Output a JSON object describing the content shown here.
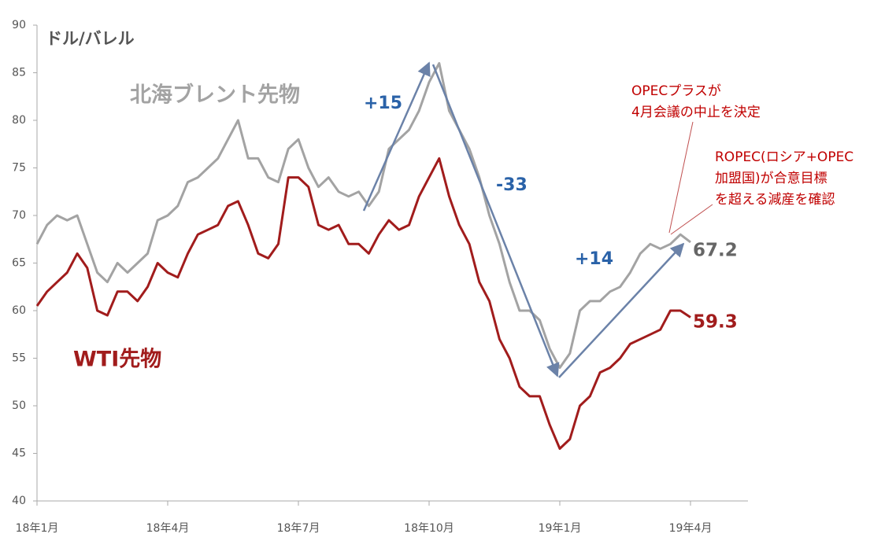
{
  "chart_data": {
    "type": "line",
    "y_label": "ドル/バレル",
    "categories": [
      "18年1月",
      null,
      null,
      null,
      null,
      null,
      null,
      null,
      null,
      null,
      null,
      null,
      null,
      "18年4月",
      null,
      null,
      null,
      null,
      null,
      null,
      null,
      null,
      null,
      null,
      null,
      null,
      "18年7月",
      null,
      null,
      null,
      null,
      null,
      null,
      null,
      null,
      null,
      null,
      null,
      null,
      "18年10月",
      null,
      null,
      null,
      null,
      null,
      null,
      null,
      null,
      null,
      null,
      null,
      null,
      "19年1月",
      null,
      null,
      null,
      null,
      null,
      null,
      null,
      null,
      null,
      null,
      null,
      null,
      "19年4月"
    ],
    "series": [
      {
        "name": "北海ブレント先物",
        "color": "#a3a3a3",
        "values": [
          67,
          69,
          70,
          69.5,
          70,
          67,
          64,
          63,
          65,
          64,
          65,
          66,
          69.5,
          70,
          71,
          73.5,
          74,
          75,
          76,
          78,
          80,
          76,
          76,
          74,
          73.5,
          77,
          78,
          75,
          73,
          74,
          72.5,
          72,
          72.5,
          71,
          72.5,
          77,
          78,
          79,
          81,
          84,
          86,
          81,
          79,
          77,
          74,
          70,
          67,
          63,
          60,
          60,
          59,
          56,
          54,
          55.5,
          60,
          61,
          61,
          62,
          62.5,
          64,
          66,
          67,
          66.5,
          67,
          68,
          67.2
        ]
      },
      {
        "name": "WTI先物",
        "color": "#a11c1c",
        "values": [
          60.5,
          62,
          63,
          64,
          66,
          64.5,
          60,
          59.5,
          62,
          62,
          61,
          62.5,
          65,
          64,
          63.5,
          66,
          68,
          68.5,
          69,
          71,
          71.5,
          69,
          66,
          65.5,
          67,
          74,
          74,
          73,
          69,
          68.5,
          69,
          67,
          67,
          66,
          68,
          69.5,
          68.5,
          69,
          72,
          74,
          76,
          72,
          69,
          67,
          63,
          61,
          57,
          55,
          52,
          51,
          51,
          48,
          45.5,
          46.5,
          50,
          51,
          53.5,
          54,
          55,
          56.5,
          57,
          57.5,
          58,
          60,
          60,
          59.3
        ]
      }
    ],
    "ylim": [
      40,
      90
    ],
    "yticks": [
      40,
      45,
      50,
      55,
      60,
      65,
      70,
      75,
      80,
      85,
      90
    ],
    "grid": false,
    "annotations": [
      {
        "text": [
          "+15"
        ]
      },
      {
        "text": [
          "-33"
        ]
      },
      {
        "text": [
          "+14"
        ]
      },
      {
        "text": [
          "OPECプラスが",
          "4月会議の中止を決定"
        ]
      },
      {
        "text": [
          "ROPEC(ロシア+OPEC",
          "加盟国)が合意目標",
          "を超える減産を確認"
        ]
      },
      {
        "text": [
          "67.2"
        ]
      },
      {
        "text": [
          "59.3"
        ]
      }
    ]
  }
}
